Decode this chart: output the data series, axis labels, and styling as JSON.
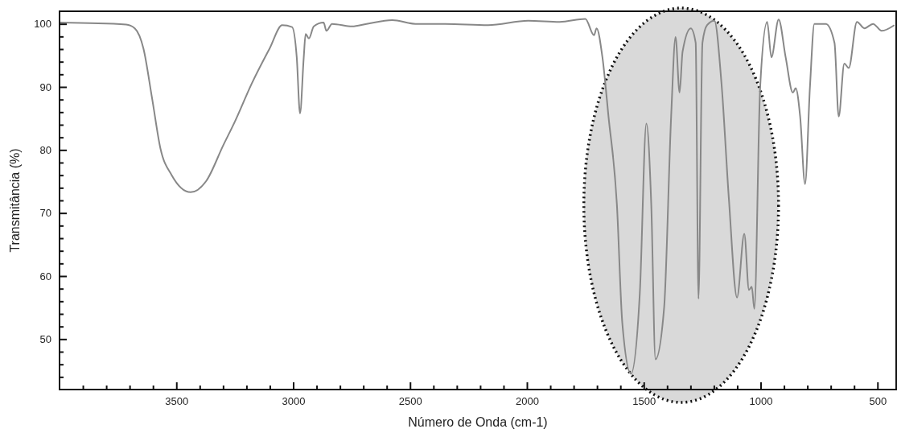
{
  "chart_data": {
    "type": "line",
    "xlabel": "Número de Onda (cm-1)",
    "ylabel": "Transmitância (%)",
    "xlim": [
      4000,
      420
    ],
    "ylim": [
      42,
      102
    ],
    "xticks": [
      {
        "value": 3900,
        "label": null
      },
      {
        "value": 3800,
        "label": null
      },
      {
        "value": 3700,
        "label": null
      },
      {
        "value": 3600,
        "label": null
      },
      3500,
      {
        "value": 3400,
        "label": null
      },
      {
        "value": 3300,
        "label": null
      },
      {
        "value": 3200,
        "label": null
      },
      {
        "value": 3100,
        "label": null
      },
      3000,
      {
        "value": 2900,
        "label": null
      },
      {
        "value": 2800,
        "label": null
      },
      {
        "value": 2700,
        "label": null
      },
      {
        "value": 2600,
        "label": null
      },
      2500,
      {
        "value": 2400,
        "label": null
      },
      {
        "value": 2300,
        "label": null
      },
      {
        "value": 2200,
        "label": null
      },
      {
        "value": 2100,
        "label": null
      },
      2000,
      {
        "value": 1900,
        "label": null
      },
      {
        "value": 1800,
        "label": null
      },
      {
        "value": 1700,
        "label": null
      },
      {
        "value": 1600,
        "label": null
      },
      1500,
      {
        "value": 1400,
        "label": null
      },
      {
        "value": 1300,
        "label": null
      },
      {
        "value": 1200,
        "label": null
      },
      {
        "value": 1100,
        "label": null
      },
      1000,
      {
        "value": 900,
        "label": null
      },
      {
        "value": 800,
        "label": null
      },
      {
        "value": 700,
        "label": null
      },
      {
        "value": 600,
        "label": null
      },
      500
    ],
    "yticks": [
      {
        "value": 44,
        "label": null
      },
      {
        "value": 46,
        "label": null
      },
      {
        "value": 48,
        "label": null
      },
      50,
      {
        "value": 52,
        "label": null
      },
      {
        "value": 54,
        "label": null
      },
      {
        "value": 56,
        "label": null
      },
      {
        "value": 58,
        "label": null
      },
      60,
      {
        "value": 62,
        "label": null
      },
      {
        "value": 64,
        "label": null
      },
      {
        "value": 66,
        "label": null
      },
      {
        "value": 68,
        "label": null
      },
      70,
      {
        "value": 72,
        "label": null
      },
      {
        "value": 74,
        "label": null
      },
      {
        "value": 76,
        "label": null
      },
      {
        "value": 78,
        "label": null
      },
      80,
      {
        "value": 82,
        "label": null
      },
      {
        "value": 84,
        "label": null
      },
      {
        "value": 86,
        "label": null
      },
      {
        "value": 88,
        "label": null
      },
      90,
      {
        "value": 92,
        "label": null
      },
      {
        "value": 94,
        "label": null
      },
      {
        "value": 96,
        "label": null
      },
      {
        "value": 98,
        "label": null
      },
      100
    ],
    "grid": false,
    "marker": "none",
    "line_style": "solid",
    "series": [
      {
        "color": "#888888",
        "x": [
          4000,
          3715,
          3678,
          3641,
          3604,
          3568,
          3520,
          3439,
          3372,
          3300,
          3251,
          3178,
          3101,
          3047,
          3005,
          2985,
          2971,
          2955,
          2947,
          2933,
          2912,
          2870,
          2858,
          2834,
          2748,
          2686,
          2576,
          2477,
          2350,
          2166,
          1995,
          1860,
          1750,
          1713,
          1702,
          1677,
          1651,
          1615,
          1592,
          1555,
          1517,
          1489,
          1468,
          1450,
          1413,
          1383,
          1364,
          1347,
          1334,
          1299,
          1278,
          1266,
          1249,
          1229,
          1198,
          1167,
          1136,
          1101,
          1070,
          1050,
          1038,
          1027,
          1002,
          972,
          954,
          923,
          893,
          862,
          850,
          831,
          810,
          789,
          770,
          721,
          684,
          666,
          642,
          623,
          588,
          556,
          519,
          482,
          428
        ],
        "values": [
          100.2,
          99.9,
          99.3,
          96.1,
          88.2,
          80.2,
          76.0,
          73.3,
          75.1,
          80.7,
          84.4,
          90.5,
          96.1,
          99.8,
          99.5,
          94.7,
          85.8,
          94.7,
          98.4,
          97.7,
          99.6,
          100.2,
          98.9,
          100.0,
          99.6,
          100.0,
          100.6,
          100.0,
          100.0,
          99.8,
          100.5,
          100.3,
          100.8,
          98.2,
          99.3,
          94.7,
          85.3,
          71.3,
          52.6,
          44.5,
          57.3,
          84.2,
          71.3,
          46.8,
          55.0,
          85.3,
          97.9,
          89.1,
          95.6,
          99.3,
          97.0,
          56.4,
          97.0,
          99.8,
          100.5,
          90.3,
          72.3,
          56.6,
          66.7,
          57.8,
          58.3,
          54.8,
          90.0,
          100.3,
          94.7,
          100.7,
          94.7,
          89.1,
          89.8,
          85.3,
          74.6,
          90.0,
          100.0,
          100.0,
          97.0,
          85.3,
          93.7,
          93.0,
          100.3,
          99.3,
          100.0,
          98.9,
          99.8
        ]
      }
    ]
  }
}
